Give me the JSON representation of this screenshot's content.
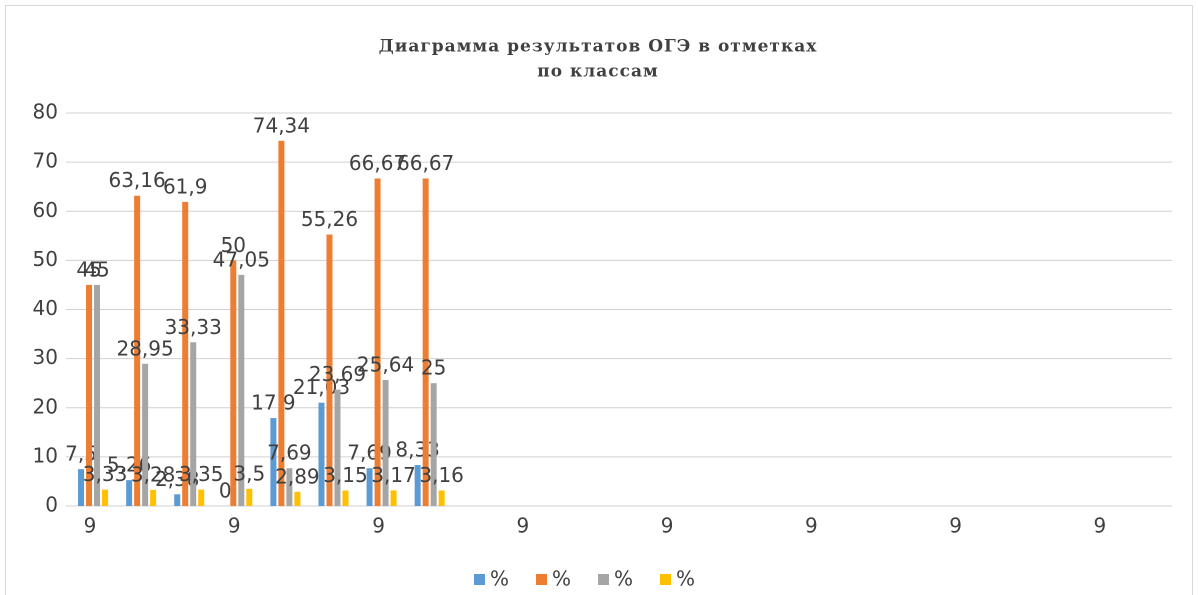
{
  "chart_data": {
    "type": "bar",
    "title": "Диаграмма результатов ОГЭ в отметках",
    "subtitle": "по классам",
    "categories": [
      "9",
      null,
      null,
      "9",
      null,
      null,
      "9",
      null,
      null,
      "9",
      null,
      null,
      "9",
      null,
      null,
      "9",
      null,
      null,
      "9",
      null,
      null,
      "9",
      null
    ],
    "series": [
      {
        "name": "%",
        "color": "#5b9bd5",
        "values": [
          7.5,
          5.26,
          2.38,
          0,
          17.9,
          21.03,
          7.69,
          8.33,
          null,
          null,
          null,
          null,
          null,
          null,
          null,
          null,
          null,
          null,
          null,
          null,
          null,
          null,
          null
        ],
        "value_labels": [
          "7,5",
          "5,26",
          "2,38",
          "0",
          "17,9",
          "21,03",
          "7,69",
          "8,33",
          null,
          null,
          null,
          null,
          null,
          null,
          null,
          null,
          null,
          null,
          null,
          null,
          null,
          null,
          null
        ]
      },
      {
        "name": "%",
        "color": "#ed7d31",
        "values": [
          45,
          63.16,
          61.9,
          50,
          74.34,
          55.26,
          66.67,
          66.67,
          null,
          null,
          null,
          null,
          null,
          null,
          null,
          null,
          null,
          null,
          null,
          null,
          null,
          null,
          null
        ],
        "value_labels": [
          "45",
          "63,16",
          "61,9",
          "50",
          "74,34",
          "55,26",
          "66,67",
          "66,67",
          null,
          null,
          null,
          null,
          null,
          null,
          null,
          null,
          null,
          null,
          null,
          null,
          null,
          null,
          null
        ]
      },
      {
        "name": "%",
        "color": "#a5a5a5",
        "values": [
          45,
          28.95,
          33.33,
          47.05,
          7.69,
          23.69,
          25.64,
          25,
          null,
          null,
          null,
          null,
          null,
          null,
          null,
          null,
          null,
          null,
          null,
          null,
          null,
          null,
          null
        ],
        "value_labels": [
          "45",
          "28,95",
          "33,33",
          "47,05",
          "7,69",
          "23,69",
          "25,64",
          "25",
          null,
          null,
          null,
          null,
          null,
          null,
          null,
          null,
          null,
          null,
          null,
          null,
          null,
          null,
          null
        ]
      },
      {
        "name": "%",
        "color": "#ffc000",
        "values": [
          3.33,
          3.28,
          3.35,
          3.5,
          2.89,
          3.15,
          3.17,
          3.16,
          null,
          null,
          null,
          null,
          null,
          null,
          null,
          null,
          null,
          null,
          null,
          null,
          null,
          null,
          null
        ],
        "value_labels": [
          "3,33",
          "3,28",
          "3,35",
          "3,5",
          "2,89",
          "3,15",
          "3,17",
          "3,16",
          null,
          null,
          null,
          null,
          null,
          null,
          null,
          null,
          null,
          null,
          null,
          null,
          null,
          null,
          null
        ]
      }
    ],
    "ylim": [
      0,
      80
    ],
    "yticks": [
      0,
      10,
      20,
      30,
      40,
      50,
      60,
      70,
      80
    ],
    "grid": true,
    "legend": "bottom"
  }
}
